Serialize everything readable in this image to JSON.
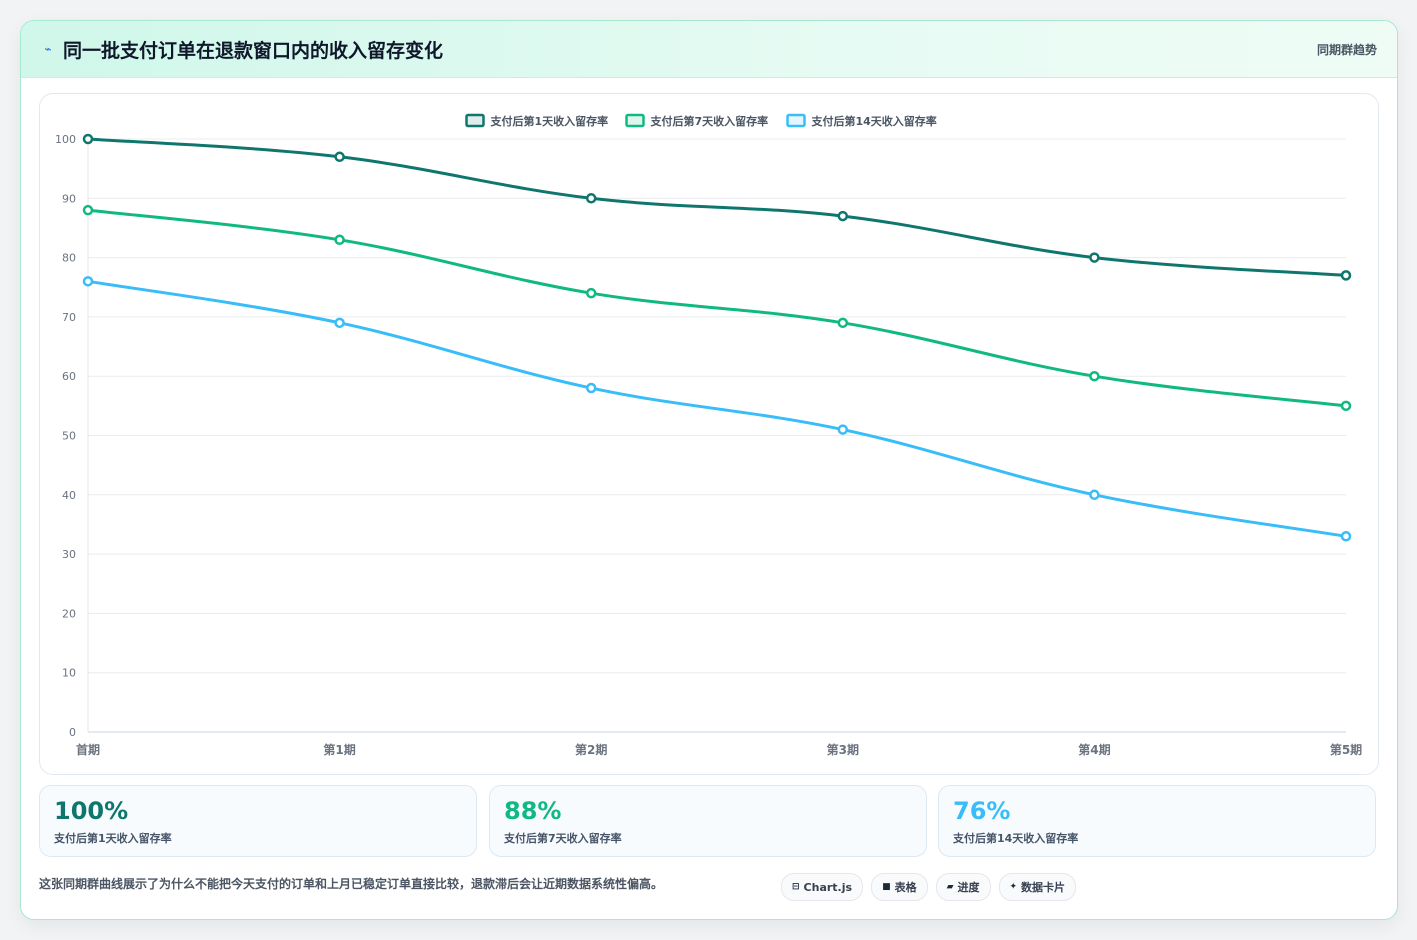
{
  "header": {
    "icon": "sparkle-icon",
    "title": "同一批支付订单在退款窗口内的收入留存变化",
    "tag": "同期群趋势"
  },
  "chart_data": {
    "type": "line",
    "categories": [
      "首期",
      "第1期",
      "第2期",
      "第3期",
      "第4期",
      "第5期"
    ],
    "series": [
      {
        "name": "支付后第1天收入留存率",
        "values": [
          100,
          97,
          90,
          87,
          80,
          77
        ],
        "color": "#0f766e"
      },
      {
        "name": "支付后第7天收入留存率",
        "values": [
          88,
          83,
          74,
          69,
          60,
          55
        ],
        "color": "#10b981"
      },
      {
        "name": "支付后第14天收入留存率",
        "values": [
          76,
          69,
          58,
          51,
          40,
          33
        ],
        "color": "#38bdf8"
      }
    ],
    "ylim": [
      0,
      100
    ],
    "yticks": [
      0,
      10,
      20,
      30,
      40,
      50,
      60,
      70,
      80,
      90,
      100
    ],
    "grid": true,
    "legend": "top-center"
  },
  "stats": [
    {
      "value": "100%",
      "label": "支付后第1天收入留存率",
      "color": "#0f766e"
    },
    {
      "value": "88%",
      "label": "支付后第7天收入留存率",
      "color": "#10b981"
    },
    {
      "value": "76%",
      "label": "支付后第14天收入留存率",
      "color": "#38bdf8"
    }
  ],
  "footer": {
    "text": "这张同期群曲线展示了为什么不能把今天支付的订单和上月已稳定订单直接比较，退款滞后会让近期数据系统性偏高。",
    "chips": [
      {
        "icon": "chart-icon",
        "glyph": "⊟",
        "label": "Chart.js"
      },
      {
        "icon": "table-icon",
        "glyph": "■",
        "label": "表格"
      },
      {
        "icon": "progress-icon",
        "glyph": "▰",
        "label": "进度"
      },
      {
        "icon": "card-icon",
        "glyph": "✦",
        "label": "数据卡片"
      }
    ]
  }
}
